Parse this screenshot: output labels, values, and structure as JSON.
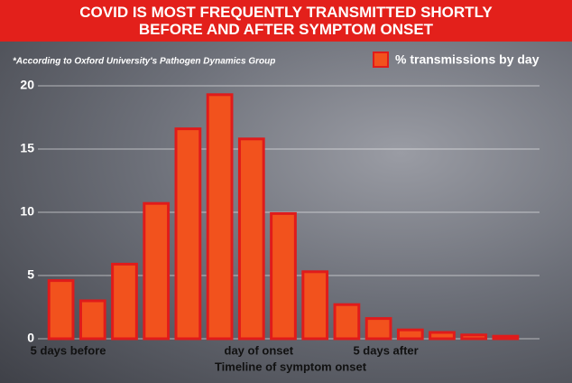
{
  "chart_data": {
    "type": "bar",
    "title": "COVID IS MOST FREQUENTLY TRANSMITTED SHORTLY BEFORE AND AFTER SYMPTOM ONSET",
    "subtitle": "*According to Oxford University's Pathogen Dynamics Group",
    "x_label": "Timeline of symptom onset",
    "categories": [
      "5 days before",
      null,
      null,
      null,
      null,
      null,
      "day of onset",
      null,
      null,
      null,
      "5 days after",
      null,
      null,
      null,
      null
    ],
    "series": [
      {
        "name": "% transmissions by day",
        "color": "#f2521d",
        "values": [
          4.6,
          3.0,
          5.9,
          10.7,
          16.6,
          19.3,
          15.8,
          9.9,
          5.3,
          2.7,
          1.6,
          0.7,
          0.5,
          0.3,
          0.2
        ]
      }
    ],
    "ylim": [
      0,
      20
    ],
    "yticks": [
      0,
      5,
      10,
      15,
      20
    ],
    "grid": true,
    "legend": "top-right"
  }
}
